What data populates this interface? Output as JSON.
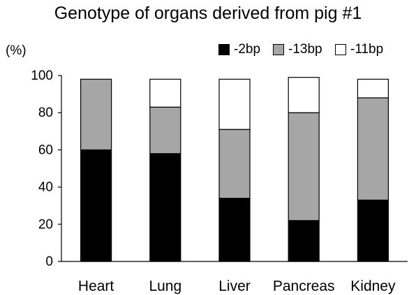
{
  "chart_data": {
    "type": "bar",
    "stacked": true,
    "title": "Genotype of organs derived from pig #1",
    "ylabel": "(%)",
    "xlabel": "",
    "ylim": [
      0,
      100
    ],
    "yticks": [
      0,
      20,
      40,
      60,
      80,
      100
    ],
    "grid": false,
    "legend_position": "top-right",
    "categories": [
      "Heart",
      "Lung",
      "Liver",
      "Pancreas",
      "Kidney"
    ],
    "series": [
      {
        "name": "-2bp",
        "color": "#000000",
        "values": [
          60,
          58,
          34,
          22,
          33
        ]
      },
      {
        "name": "-13bp",
        "color": "#a6a6a6",
        "values": [
          38,
          25,
          37,
          58,
          55
        ]
      },
      {
        "name": "-11bp",
        "color": "#ffffff",
        "values": [
          0,
          15,
          27,
          19,
          10
        ]
      }
    ]
  }
}
